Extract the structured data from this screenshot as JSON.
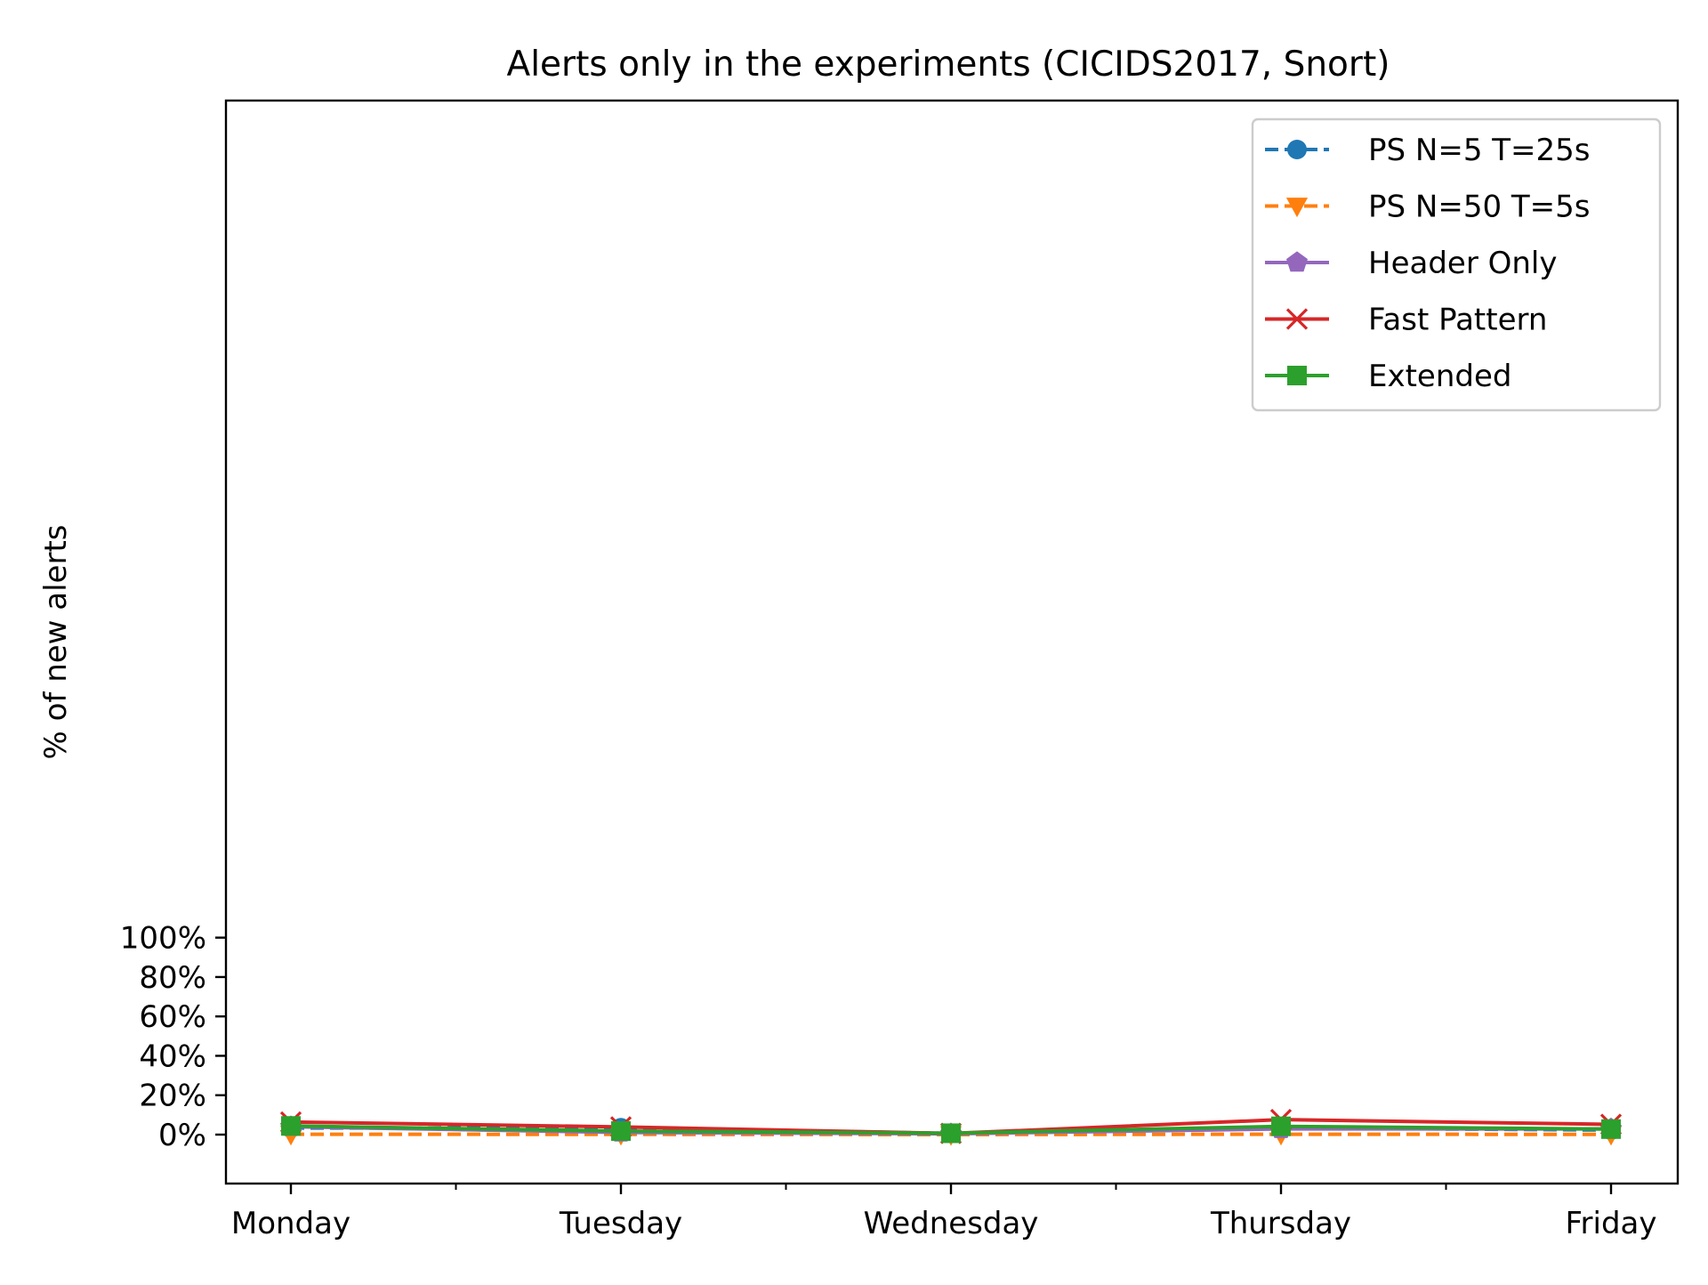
{
  "chart_data": {
    "type": "line",
    "title": "Alerts only in the experiments (CICIDS2017, Snort)",
    "xlabel": "",
    "ylabel": "% of new alerts",
    "categories": [
      "Monday",
      "Tuesday",
      "Wednesday",
      "Thursday",
      "Friday"
    ],
    "yticks": [
      0,
      20,
      40,
      60,
      80,
      100
    ],
    "ytick_labels": [
      "0%",
      "20%",
      "40%",
      "60%",
      "80%",
      "100%"
    ],
    "ylim": [
      -5,
      105
    ],
    "grid": false,
    "legend_position": "top-right",
    "series": [
      {
        "name": "PS N=5 T=25s",
        "values": [
          3.3,
          3.5,
          0.6,
          3.4,
          2.3
        ],
        "color": "#1f77b4",
        "dash": "dashed",
        "marker": "circle"
      },
      {
        "name": "PS N=50 T=5s",
        "values": [
          0.2,
          0.1,
          0.0,
          0.2,
          0.1
        ],
        "color": "#ff7f0e",
        "dash": "dashed",
        "marker": "triangle-down"
      },
      {
        "name": "Header Only",
        "values": [
          4.0,
          1.1,
          0.4,
          2.9,
          2.9
        ],
        "color": "#9467bd",
        "dash": "solid",
        "marker": "pentagon"
      },
      {
        "name": "Fast Pattern",
        "values": [
          6.4,
          3.9,
          0.6,
          7.6,
          5.2
        ],
        "color": "#d62728",
        "dash": "solid",
        "marker": "x"
      },
      {
        "name": "Extended",
        "values": [
          4.4,
          1.8,
          0.7,
          4.2,
          2.8
        ],
        "color": "#2ca02c",
        "dash": "solid",
        "marker": "square"
      }
    ]
  }
}
